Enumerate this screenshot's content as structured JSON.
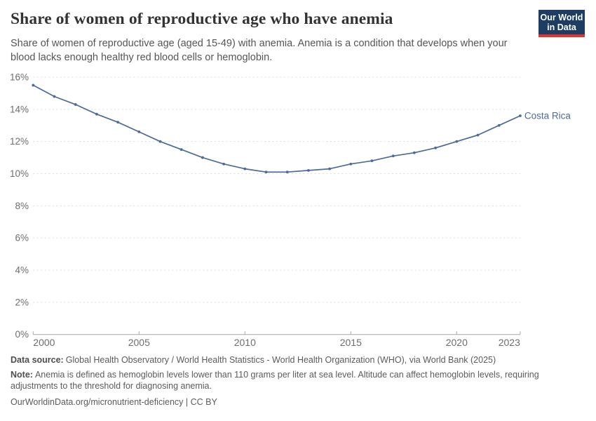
{
  "header": {
    "title": "Share of women of reproductive age who have anemia",
    "subtitle": "Share of women of reproductive age (aged 15-49) with anemia. Anemia is a condition that develops when your blood lacks enough healthy red blood cells or hemoglobin.",
    "logo": {
      "line1": "Our World",
      "line2": "in Data",
      "bg_color": "#1d3d63",
      "stripe_color": "#e0342c"
    }
  },
  "chart_data": {
    "type": "line",
    "title": "Share of women of reproductive age who have anemia",
    "xlabel": "",
    "ylabel": "",
    "xlim": [
      2000,
      2023
    ],
    "ylim": [
      0,
      16
    ],
    "grid": "horizontal-dashed",
    "legend_position": "end-of-line-label",
    "x": [
      2000,
      2001,
      2002,
      2003,
      2004,
      2005,
      2006,
      2007,
      2008,
      2009,
      2010,
      2011,
      2012,
      2013,
      2014,
      2015,
      2016,
      2017,
      2018,
      2019,
      2020,
      2021,
      2022,
      2023
    ],
    "series": [
      {
        "name": "Costa Rica",
        "color": "#4c6a9c",
        "values": [
          15.5,
          14.8,
          14.3,
          13.7,
          13.2,
          12.6,
          12.0,
          11.5,
          11.0,
          10.6,
          10.3,
          10.1,
          10.1,
          10.2,
          10.3,
          10.6,
          10.8,
          11.1,
          11.3,
          11.6,
          12.0,
          12.4,
          13.0,
          13.6
        ]
      }
    ],
    "x_ticks": [
      {
        "value": 2000,
        "label": "2000"
      },
      {
        "value": 2005,
        "label": "2005"
      },
      {
        "value": 2010,
        "label": "2010"
      },
      {
        "value": 2015,
        "label": "2015"
      },
      {
        "value": 2020,
        "label": "2020"
      },
      {
        "value": 2023,
        "label": "2023"
      }
    ],
    "y_ticks": [
      {
        "value": 0,
        "label": "0%"
      },
      {
        "value": 2,
        "label": "2%"
      },
      {
        "value": 4,
        "label": "4%"
      },
      {
        "value": 6,
        "label": "6%"
      },
      {
        "value": 8,
        "label": "8%"
      },
      {
        "value": 10,
        "label": "10%"
      },
      {
        "value": 12,
        "label": "12%"
      },
      {
        "value": 14,
        "label": "14%"
      },
      {
        "value": 16,
        "label": "16%"
      }
    ],
    "end_label": "Costa Rica",
    "colors": {
      "gridline": "#dcdcdc",
      "axis": "#a8a8a8",
      "tick_label": "#6e6e6e"
    }
  },
  "footer": {
    "data_source_label": "Data source:",
    "data_source": "Global Health Observatory / World Health Statistics - World Health Organization (WHO), via World Bank (2025)",
    "note_label": "Note:",
    "note": "Anemia is defined as hemoglobin levels lower than 110 grams per liter at sea level. Altitude can affect hemoglobin levels, requiring adjustments to the threshold for diagnosing anemia.",
    "url": "OurWorldinData.org/micronutrient-deficiency",
    "separator": "|",
    "license": "CC BY"
  }
}
